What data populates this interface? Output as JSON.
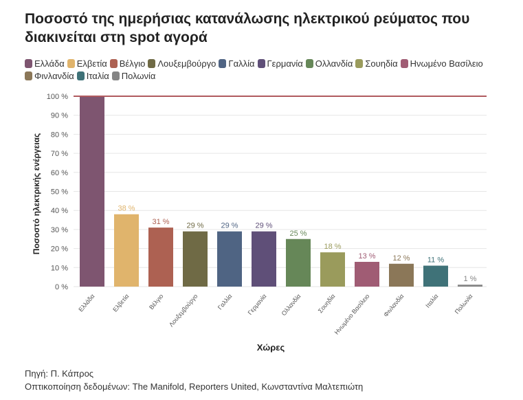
{
  "title": "Ποσοστό της ημερήσιας κατανάλωσης ηλεκτρικού ρεύματος που διακινείται στη spot αγορά",
  "footer": {
    "source": "Πηγή: Π. Κάπρος",
    "credit": "Οπτικοποίηση δεδομένων: The Manifold, Reporters United, Κωνσταντίνα Μαλτεπιώτη"
  },
  "chart_data": {
    "type": "bar",
    "xlabel": "Χώρες",
    "ylabel": "Ποσοστό ηλεκτρικής ενέργειας",
    "ylim": [
      0,
      100
    ],
    "yticks": [
      "0 %",
      "10 %",
      "20 %",
      "30 %",
      "40 %",
      "50 %",
      "60 %",
      "70 %",
      "80 %",
      "90 %",
      "100 %"
    ],
    "reference_line": 100,
    "reference_color": "#b05a5e",
    "categories": [
      "Ελλάδα",
      "Ελβετία",
      "Βέλγιο",
      "Λουξεμβούργο",
      "Γαλλία",
      "Γερμανία",
      "Ολλανδία",
      "Σουηδία",
      "Ηνωμένο Βασίλειο",
      "Φινλανδία",
      "Ιταλία",
      "Πολωνία"
    ],
    "values": [
      100,
      38,
      31,
      29,
      29,
      29,
      25,
      18,
      13,
      12,
      11,
      1
    ],
    "labels": [
      "",
      "38 %",
      "31 %",
      "29 %",
      "29 %",
      "29 %",
      "25 %",
      "18 %",
      "13 %",
      "12 %",
      "11 %",
      "1 %"
    ],
    "colors": [
      "#7e5570",
      "#e0b46c",
      "#ad6152",
      "#6f6a45",
      "#4f6483",
      "#5f4f78",
      "#668758",
      "#9a9b5c",
      "#a05c74",
      "#8b7758",
      "#3f7278",
      "#858585"
    ],
    "legend_position": "top"
  }
}
